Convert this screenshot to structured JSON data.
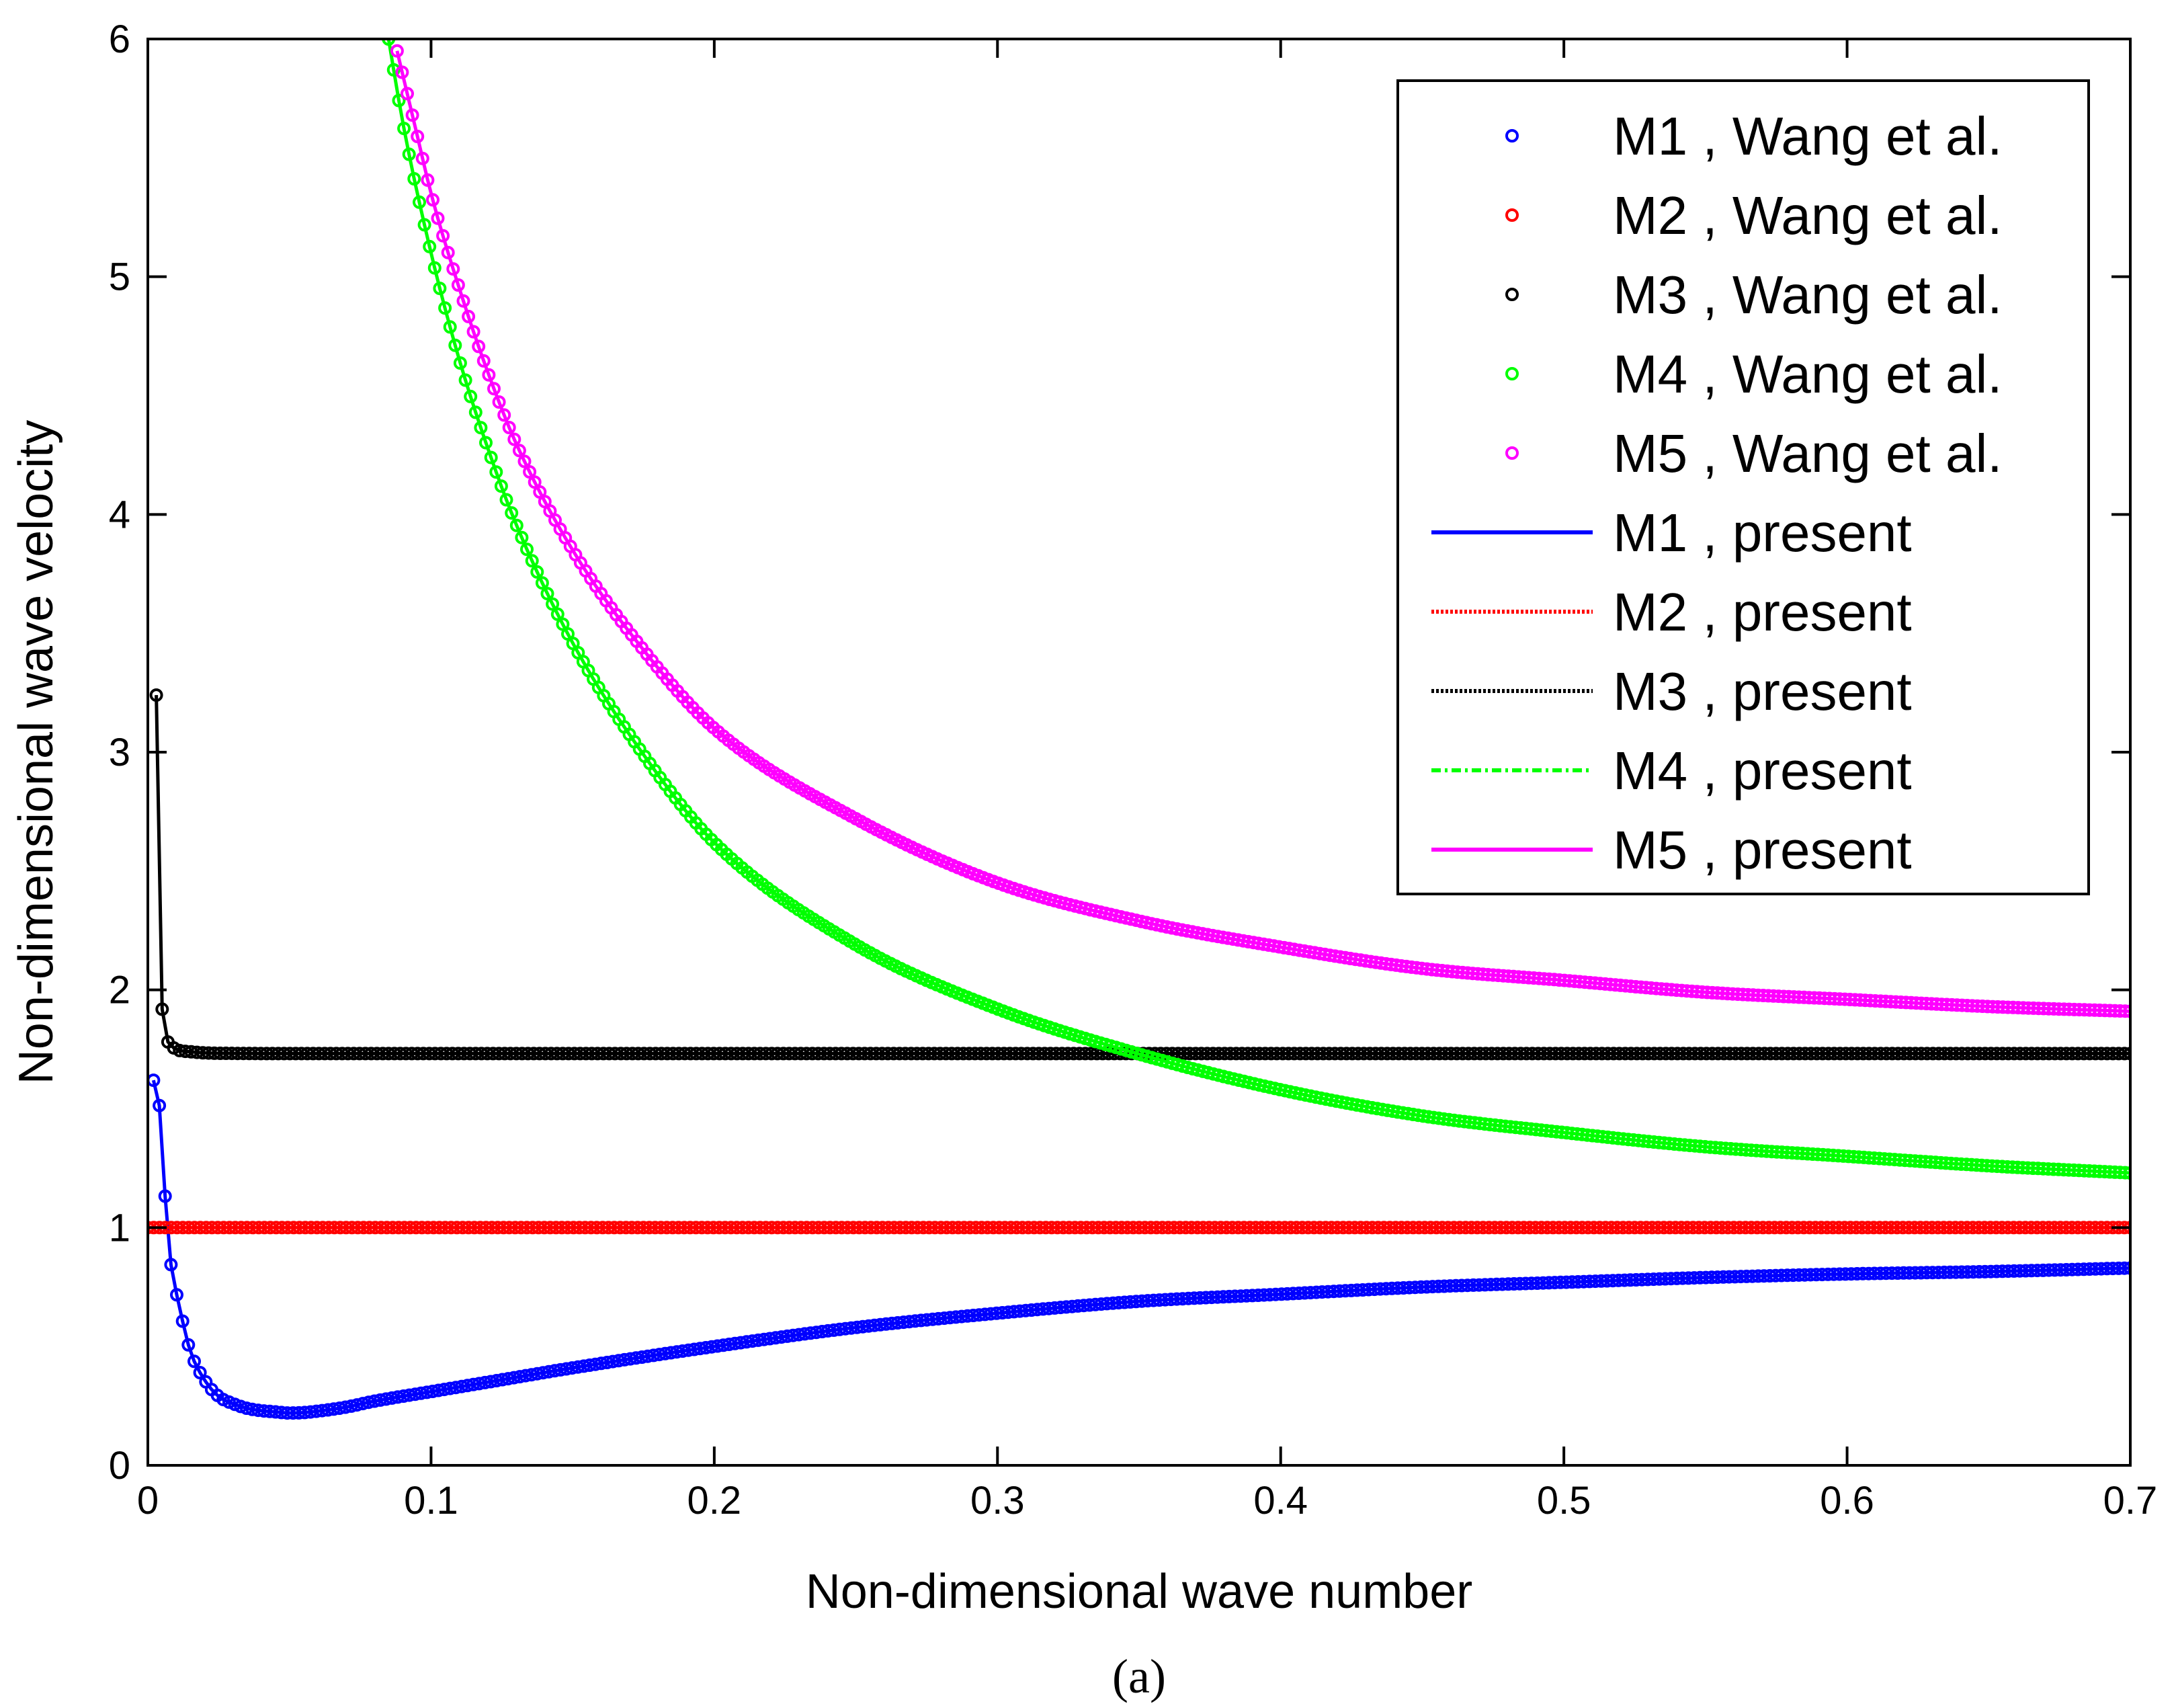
{
  "chart_data": {
    "type": "line",
    "title": "",
    "caption": "(a)",
    "xlabel": "Non-dimensional wave number",
    "ylabel": "Non-dimensional wave velocity",
    "xlim": [
      0,
      0.7
    ],
    "ylim": [
      0,
      6
    ],
    "xticks": [
      0,
      0.1,
      0.2,
      0.3,
      0.4,
      0.5,
      0.6,
      0.7
    ],
    "xtick_labels": [
      "0",
      "0.1",
      "0.2",
      "0.3",
      "0.4",
      "0.5",
      "0.6",
      "0.7"
    ],
    "yticks": [
      0,
      1,
      2,
      3,
      4,
      5,
      6
    ],
    "ytick_labels": [
      "0",
      "1",
      "2",
      "3",
      "4",
      "5",
      "6"
    ],
    "grid": false,
    "legend_position": "top-right",
    "legend": [
      {
        "label": "M1 , Wang et al.",
        "style": "marker",
        "color": "#0000ff"
      },
      {
        "label": "M2 , Wang et al.",
        "style": "marker",
        "color": "#ff0000"
      },
      {
        "label": "M3 , Wang et al.",
        "style": "marker",
        "color": "#000000"
      },
      {
        "label": "M4 , Wang et al.",
        "style": "marker",
        "color": "#00ff00"
      },
      {
        "label": "M5 , Wang et al.",
        "style": "marker",
        "color": "#ff00ff"
      },
      {
        "label": "M1 , present",
        "style": "solid",
        "color": "#0000ff"
      },
      {
        "label": "M2 , present",
        "style": "dotted",
        "color": "#ff0000"
      },
      {
        "label": "M3 , present",
        "style": "dotted",
        "color": "#000000"
      },
      {
        "label": "M4 , present",
        "style": "dashdot",
        "color": "#00ff00"
      },
      {
        "label": "M5 , present",
        "style": "solid",
        "color": "#ff00ff"
      }
    ],
    "series": [
      {
        "name": "M1",
        "color": "#0000ff",
        "x": [
          0.002,
          0.004,
          0.006,
          0.008,
          0.01,
          0.012,
          0.015,
          0.02,
          0.025,
          0.03,
          0.035,
          0.04,
          0.045,
          0.05,
          0.055,
          0.06,
          0.07,
          0.08,
          0.1,
          0.12,
          0.15,
          0.2,
          0.25,
          0.3,
          0.35,
          0.4,
          0.45,
          0.5,
          0.55,
          0.6,
          0.65,
          0.7
        ],
        "y": [
          1.62,
          1.52,
          1.15,
          0.86,
          0.73,
          0.62,
          0.48,
          0.36,
          0.29,
          0.26,
          0.24,
          0.23,
          0.225,
          0.22,
          0.222,
          0.228,
          0.245,
          0.27,
          0.31,
          0.35,
          0.41,
          0.5,
          0.58,
          0.64,
          0.69,
          0.72,
          0.75,
          0.77,
          0.79,
          0.805,
          0.815,
          0.83
        ]
      },
      {
        "name": "M2",
        "color": "#ff0000",
        "x": [
          0.0,
          0.1,
          0.2,
          0.3,
          0.4,
          0.5,
          0.6,
          0.7
        ],
        "y": [
          1.0,
          1.0,
          1.0,
          1.0,
          1.0,
          1.0,
          1.0,
          1.0
        ]
      },
      {
        "name": "M3",
        "color": "#000000",
        "x": [
          0.003,
          0.004,
          0.005,
          0.006,
          0.008,
          0.01,
          0.015,
          0.02,
          0.03,
          0.05,
          0.1,
          0.2,
          0.3,
          0.4,
          0.5,
          0.6,
          0.7
        ],
        "y": [
          3.24,
          2.29,
          1.93,
          1.82,
          1.77,
          1.75,
          1.74,
          1.735,
          1.733,
          1.732,
          1.732,
          1.732,
          1.732,
          1.732,
          1.732,
          1.732,
          1.732
        ]
      },
      {
        "name": "M4",
        "color": "#00ff00",
        "x": [
          0.085,
          0.09,
          0.1,
          0.11,
          0.12,
          0.13,
          0.15,
          0.175,
          0.2,
          0.25,
          0.3,
          0.35,
          0.4,
          0.45,
          0.5,
          0.55,
          0.6,
          0.65,
          0.7
        ],
        "y": [
          6.0,
          5.65,
          5.1,
          4.65,
          4.28,
          3.96,
          3.46,
          2.99,
          2.62,
          2.19,
          1.92,
          1.73,
          1.58,
          1.47,
          1.4,
          1.34,
          1.3,
          1.26,
          1.23
        ]
      },
      {
        "name": "M5",
        "color": "#ff00ff",
        "x": [
          0.088,
          0.095,
          0.1,
          0.11,
          0.12,
          0.13,
          0.15,
          0.175,
          0.2,
          0.25,
          0.3,
          0.35,
          0.4,
          0.45,
          0.5,
          0.55,
          0.6,
          0.65,
          0.7
        ],
        "y": [
          5.95,
          5.6,
          5.35,
          4.95,
          4.6,
          4.3,
          3.85,
          3.43,
          3.1,
          2.72,
          2.45,
          2.29,
          2.18,
          2.09,
          2.04,
          1.99,
          1.96,
          1.93,
          1.91
        ]
      }
    ]
  }
}
